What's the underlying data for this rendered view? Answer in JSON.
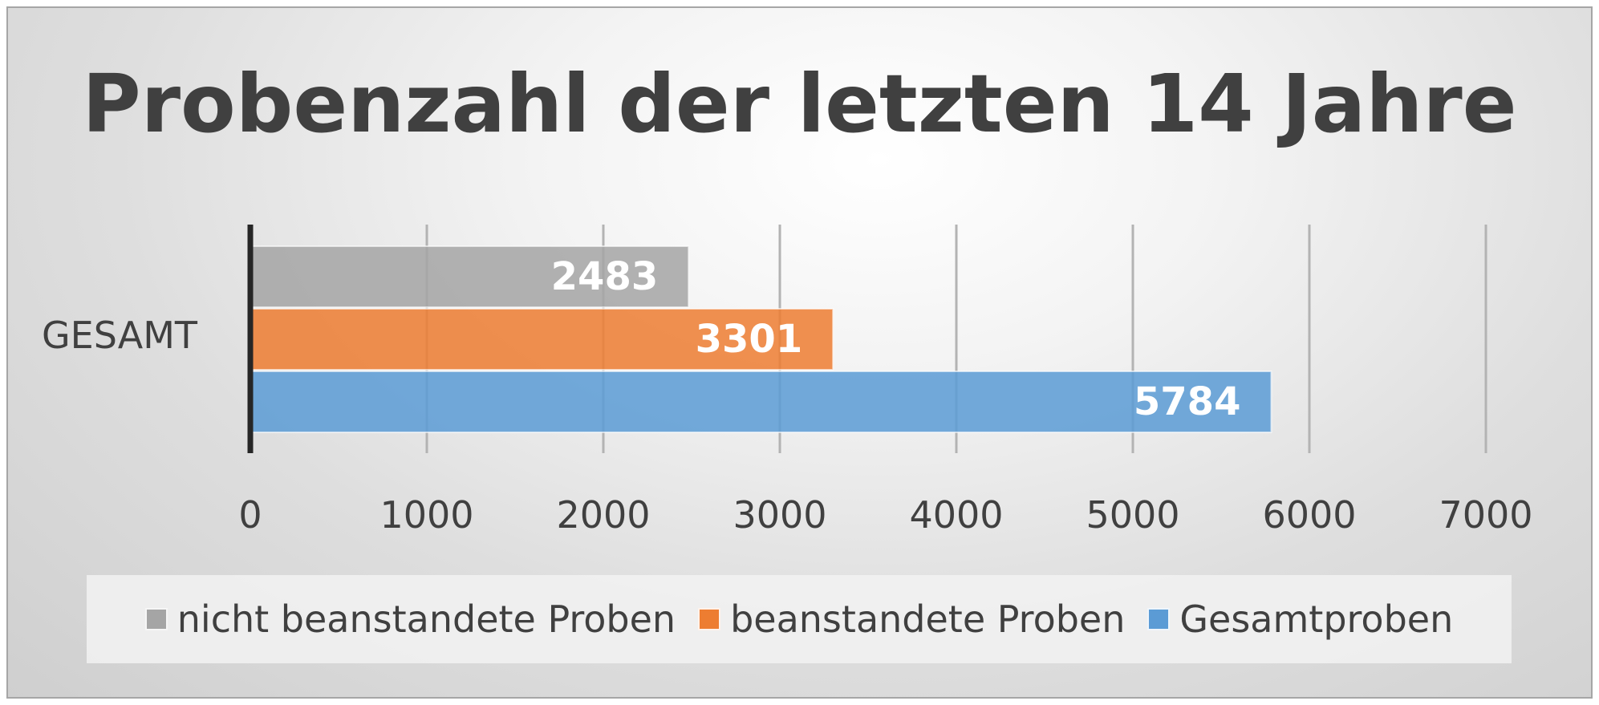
{
  "chart_data": {
    "type": "bar",
    "orientation": "horizontal",
    "title": "Probenzahl der letzten 14 Jahre",
    "categories": [
      "GESAMT"
    ],
    "series": [
      {
        "name": "nicht beanstandete Proben",
        "values": [
          2483
        ],
        "color": "#a5a5a5"
      },
      {
        "name": "beanstandete Proben",
        "values": [
          3301
        ],
        "color": "#ed7d31"
      },
      {
        "name": "Gesamtproben",
        "values": [
          5784
        ],
        "color": "#5b9bd5"
      }
    ],
    "xlim": [
      0,
      7000
    ],
    "xticks": [
      "0",
      "1000",
      "2000",
      "3000",
      "4000",
      "5000",
      "6000",
      "7000"
    ],
    "grid": true,
    "data_labels": true,
    "legend_position": "bottom"
  }
}
